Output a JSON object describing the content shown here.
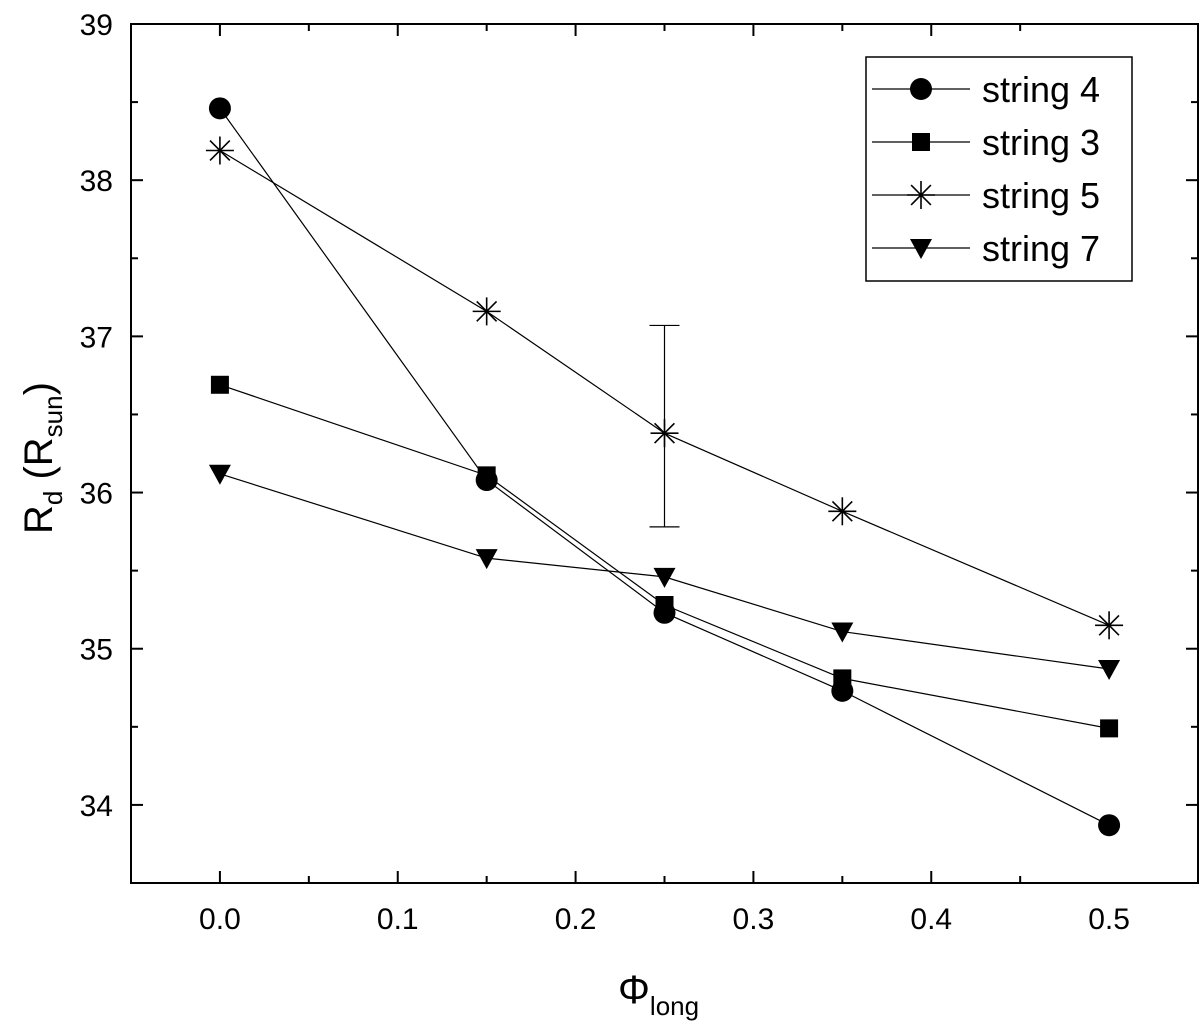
{
  "chart_data": {
    "type": "line",
    "x_axis": {
      "label_main": "Φ",
      "label_sub": "long",
      "range": [
        -0.05,
        0.55
      ],
      "ticks": [
        0.0,
        0.1,
        0.2,
        0.3,
        0.4,
        0.5
      ],
      "tick_labels": [
        "0.0",
        "0.1",
        "0.2",
        "0.3",
        "0.4",
        "0.5"
      ]
    },
    "y_axis": {
      "label_main": "R",
      "label_sub1": "d",
      "label_mid": " (R",
      "label_sub2": "sun",
      "label_end": ")",
      "range": [
        33.5,
        39.0
      ],
      "ticks": [
        34,
        35,
        36,
        37,
        38,
        39
      ],
      "tick_labels": [
        "34",
        "35",
        "36",
        "37",
        "38",
        "39"
      ]
    },
    "grid": false,
    "legend": {
      "position": "top-right",
      "entries": [
        "string 4",
        "string 3",
        "string 5",
        "string 7"
      ]
    },
    "series": [
      {
        "name": "string 4",
        "marker": "circle",
        "x": [
          0.0,
          0.15,
          0.25,
          0.35,
          0.5
        ],
        "y": [
          38.46,
          36.08,
          35.23,
          34.73,
          33.87
        ]
      },
      {
        "name": "string 3",
        "marker": "square",
        "x": [
          0.0,
          0.15,
          0.25,
          0.35,
          0.5
        ],
        "y": [
          36.69,
          36.11,
          35.28,
          34.81,
          34.49
        ]
      },
      {
        "name": "string 5",
        "marker": "asterisk",
        "x": [
          0.0,
          0.15,
          0.25,
          0.35,
          0.5
        ],
        "y": [
          38.19,
          37.16,
          36.38,
          35.88,
          35.15
        ]
      },
      {
        "name": "string 7",
        "marker": "triangle-down",
        "x": [
          0.0,
          0.15,
          0.25,
          0.35,
          0.5
        ],
        "y": [
          36.12,
          35.58,
          35.46,
          35.11,
          34.87
        ]
      }
    ],
    "error_bar": {
      "x": 0.25,
      "y": 36.38,
      "low": 35.78,
      "high": 37.07
    }
  }
}
